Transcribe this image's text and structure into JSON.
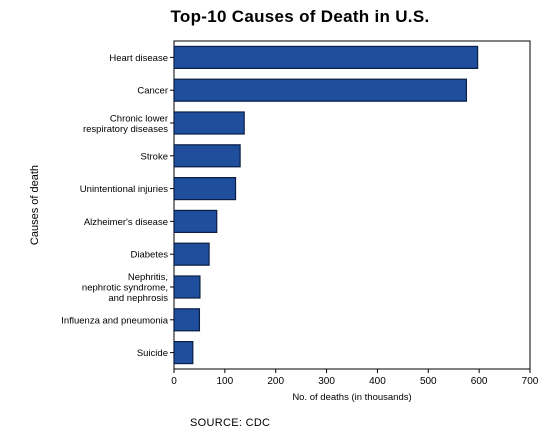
{
  "chart_data": {
    "type": "bar",
    "orientation": "horizontal",
    "title": "Top-10 Causes of Death in U.S.",
    "xlabel": "No. of deaths (in thousands)",
    "ylabel": "Causes of death",
    "xlim": [
      0,
      700
    ],
    "xticks": [
      "0",
      "100",
      "200",
      "300",
      "400",
      "500",
      "600",
      "700"
    ],
    "categories": [
      [
        "Heart disease"
      ],
      [
        "Cancer"
      ],
      [
        "Chronic lower",
        "respiratory diseases"
      ],
      [
        "Stroke"
      ],
      [
        "Unintentional injuries"
      ],
      [
        "Alzheimer's disease"
      ],
      [
        "Diabetes"
      ],
      [
        "Nephritis,",
        "nephrotic syndrome,",
        "and nephrosis"
      ],
      [
        "Influenza and pneumonia"
      ],
      [
        "Suicide"
      ]
    ],
    "values": [
      597,
      575,
      138,
      130,
      121,
      84,
      69,
      51,
      50,
      37
    ],
    "bar_color": "#1f4e9c",
    "bar_edge_color": "#0b1f45",
    "grid": false
  },
  "source": "SOURCE: CDC"
}
